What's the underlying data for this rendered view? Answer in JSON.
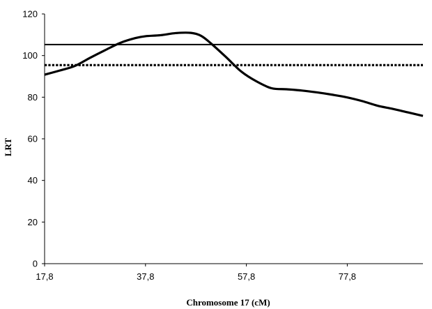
{
  "chart_data": {
    "type": "line",
    "title": "",
    "xlabel": "Chromosome 17 (cM)",
    "ylabel": "LRT",
    "xlim": [
      17.8,
      92.8
    ],
    "ylim": [
      0,
      120
    ],
    "x_ticks": [
      17.8,
      37.8,
      57.8,
      77.8
    ],
    "x_tick_labels": [
      "17,8",
      "37,8",
      "57,8",
      "77,8"
    ],
    "y_ticks": [
      0,
      20,
      40,
      60,
      80,
      100,
      120
    ],
    "y_tick_labels": [
      "0",
      "20",
      "40",
      "60",
      "80",
      "100",
      "120"
    ],
    "grid": false,
    "legend": "none",
    "series": [
      {
        "style": "solid-thick",
        "color": "#000000",
        "x": [
          17.8,
          20.8,
          23.8,
          26.8,
          29.8,
          32.8,
          35.8,
          37.8,
          40.8,
          43.8,
          46.8,
          48.8,
          50.8,
          53.8,
          56.8,
          59.8,
          62.8,
          65.8,
          68.8,
          71.8,
          74.8,
          77.8,
          80.8,
          83.8,
          86.8,
          89.8,
          92.8
        ],
        "y": [
          90.8,
          92.8,
          95.0,
          98.9,
          102.6,
          106.1,
          108.4,
          109.3,
          109.8,
          110.8,
          110.9,
          109.5,
          105.8,
          99.2,
          92.3,
          87.6,
          84.3,
          83.8,
          83.2,
          82.3,
          81.2,
          79.9,
          78.1,
          75.9,
          74.4,
          72.7,
          71.0
        ]
      },
      {
        "style": "threshold-solid",
        "color": "#000000",
        "x": [
          17.8,
          92.8
        ],
        "y": [
          105.3,
          105.3
        ]
      },
      {
        "style": "threshold-dotted",
        "color": "#000000",
        "x": [
          17.8,
          92.8
        ],
        "y": [
          95.4,
          95.4
        ]
      }
    ]
  }
}
